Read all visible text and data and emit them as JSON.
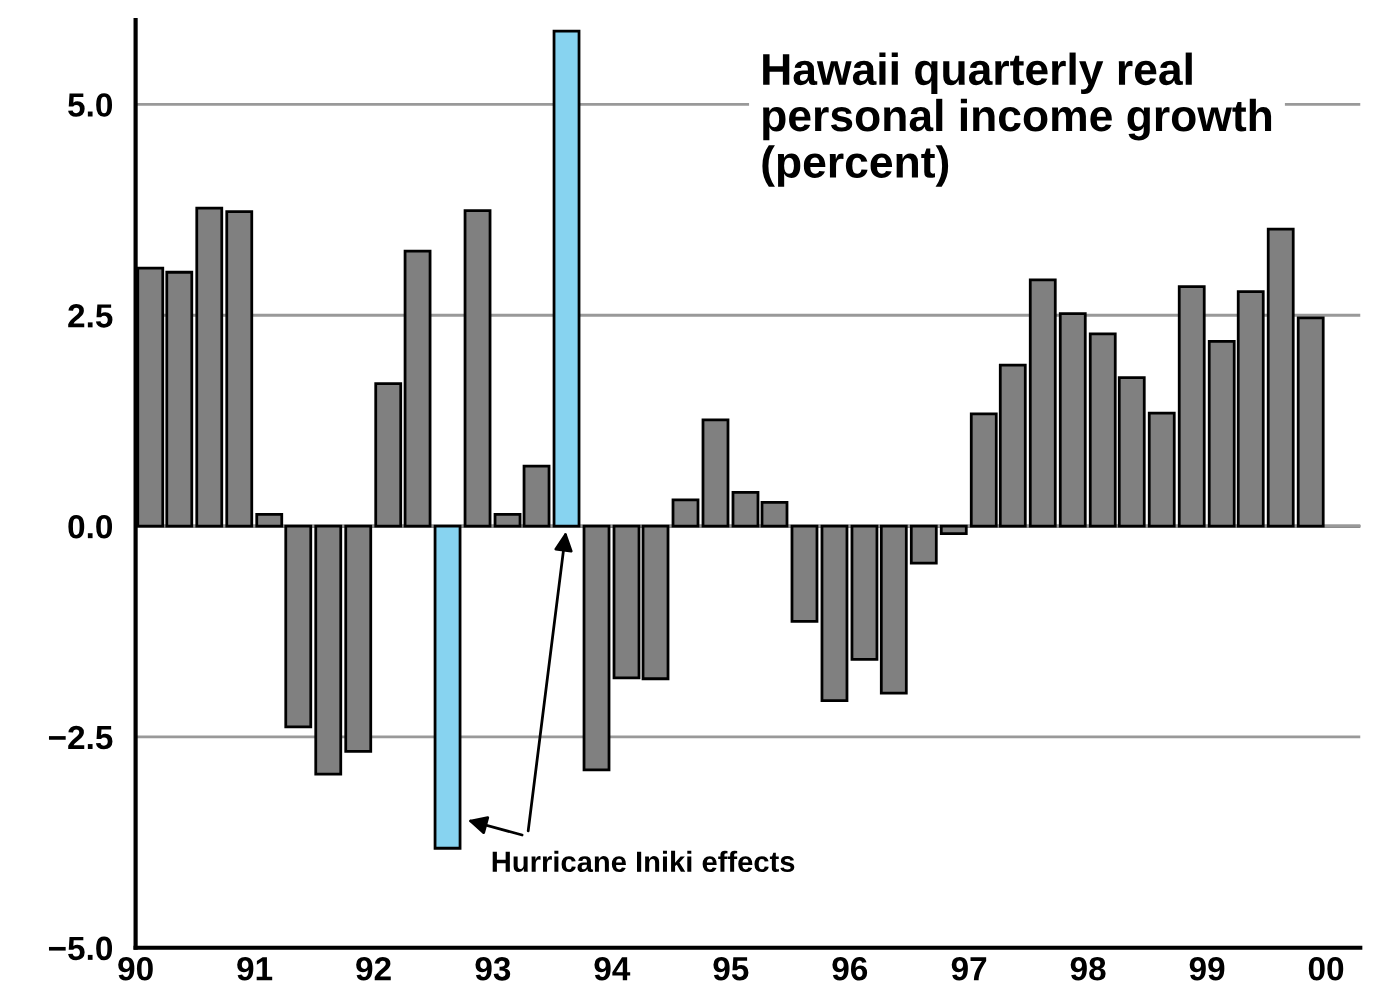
{
  "chart_data": {
    "type": "bar",
    "title": "Hawaii quarterly real\npersonal income growth\n(percent)",
    "x": [
      "1990-02-15",
      "1990-05-15",
      "1990-08-15",
      "1990-11-15",
      "1991-02-15",
      "1991-05-15",
      "1991-08-15",
      "1991-11-15",
      "1992-02-15",
      "1992-05-15",
      "1992-08-15",
      "1992-11-15",
      "1993-02-15",
      "1993-05-15",
      "1993-08-15",
      "1993-11-15",
      "1994-02-15",
      "1994-05-15",
      "1994-08-15",
      "1994-11-15",
      "1995-02-15",
      "1995-05-15",
      "1995-08-15",
      "1995-11-15",
      "1996-02-15",
      "1996-05-15",
      "1996-08-15",
      "1996-11-15",
      "1997-02-15",
      "1997-05-15",
      "1997-08-15",
      "1997-11-15",
      "1998-02-15",
      "1998-05-15",
      "1998-08-15",
      "1998-11-15",
      "1999-02-15",
      "1999-05-15",
      "1999-08-15",
      "1999-11-15"
    ],
    "values": [
      3.06,
      3.01,
      3.77,
      3.73,
      0.14,
      -2.38,
      -2.94,
      -2.67,
      1.69,
      3.26,
      -3.82,
      3.74,
      0.14,
      0.71,
      5.87,
      -2.89,
      -1.8,
      -1.81,
      0.31,
      1.26,
      0.4,
      0.28,
      -1.13,
      -2.07,
      -1.58,
      -1.98,
      -0.44,
      -0.09,
      1.33,
      1.91,
      2.92,
      2.52,
      2.28,
      1.76,
      1.34,
      2.84,
      2.19,
      2.78,
      3.52,
      2.47
    ],
    "colors": [
      "#808080",
      "#808080",
      "#808080",
      "#808080",
      "#808080",
      "#808080",
      "#808080",
      "#808080",
      "#808080",
      "#808080",
      "#87d3f0",
      "#808080",
      "#808080",
      "#808080",
      "#87d3f0",
      "#808080",
      "#808080",
      "#808080",
      "#808080",
      "#808080",
      "#808080",
      "#808080",
      "#808080",
      "#808080",
      "#808080",
      "#808080",
      "#808080",
      "#808080",
      "#808080",
      "#808080",
      "#808080",
      "#808080",
      "#808080",
      "#808080",
      "#808080",
      "#808080",
      "#808080",
      "#808080",
      "#808080",
      "#808080"
    ],
    "xlim": [
      "1990-01-01",
      "2000-04-15"
    ],
    "xticks": [
      {
        "value": "1990-01-01",
        "label": "90"
      },
      {
        "value": "1991-01-01",
        "label": "91"
      },
      {
        "value": "1992-01-01",
        "label": "92"
      },
      {
        "value": "1993-01-01",
        "label": "93"
      },
      {
        "value": "1994-01-01",
        "label": "94"
      },
      {
        "value": "1995-01-01",
        "label": "95"
      },
      {
        "value": "1996-01-01",
        "label": "96"
      },
      {
        "value": "1997-01-01",
        "label": "97"
      },
      {
        "value": "1998-01-01",
        "label": "98"
      },
      {
        "value": "1999-01-01",
        "label": "99"
      },
      {
        "value": "2000-01-01",
        "label": "00"
      }
    ],
    "ylim": [
      -5,
      6
    ],
    "yticks": [
      {
        "value": -5,
        "label": "−5.0"
      },
      {
        "value": -2.5,
        "label": "−2.5"
      },
      {
        "value": 0,
        "label": "0.0"
      },
      {
        "value": 2.5,
        "label": "2.5"
      },
      {
        "value": 5,
        "label": "5.0"
      }
    ],
    "grid": "y",
    "ref_lines": [
      {
        "axis": "y",
        "value": 0,
        "color": "#000000"
      }
    ],
    "annotations": [
      "Hurricane Iniki effects"
    ]
  }
}
